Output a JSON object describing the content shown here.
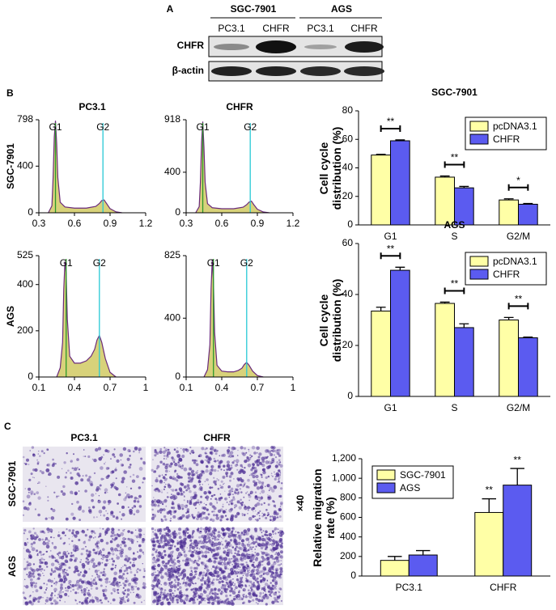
{
  "panel_labels": [
    "A",
    "B",
    "C"
  ],
  "blot": {
    "groups": [
      "SGC-7901",
      "AGS"
    ],
    "lanes": [
      "PC3.1",
      "CHFR",
      "PC3.1",
      "CHFR"
    ],
    "rows": [
      "CHFR",
      "β-actin"
    ]
  },
  "chart_data": [
    {
      "type": "histogram",
      "title": "PC3.1",
      "row_label": "SGC-7901",
      "x": [
        0.38,
        0.41,
        0.42,
        0.43,
        0.44,
        0.45,
        0.46,
        0.48,
        0.52,
        0.6,
        0.7,
        0.78,
        0.81,
        0.83,
        0.85,
        0.87,
        0.9,
        0.95,
        1.0
      ],
      "values": [
        0,
        60,
        300,
        650,
        790,
        600,
        300,
        90,
        50,
        40,
        40,
        55,
        80,
        105,
        110,
        80,
        35,
        8,
        0
      ],
      "xlim": [
        0.3,
        1.2
      ],
      "xticks": [
        0.3,
        0.6,
        0.9,
        1.2
      ],
      "ylim": [
        0,
        798
      ],
      "yticks": [
        0,
        400,
        798
      ],
      "markers": [
        {
          "label": "G1",
          "x": 0.44
        },
        {
          "label": "G2",
          "x": 0.84
        }
      ]
    },
    {
      "type": "histogram",
      "title": "CHFR",
      "x": [
        0.38,
        0.41,
        0.42,
        0.43,
        0.44,
        0.45,
        0.46,
        0.48,
        0.52,
        0.6,
        0.7,
        0.78,
        0.81,
        0.83,
        0.85,
        0.87,
        0.9,
        0.95,
        1.0
      ],
      "values": [
        0,
        60,
        300,
        700,
        900,
        650,
        300,
        90,
        50,
        40,
        40,
        55,
        80,
        105,
        115,
        80,
        35,
        8,
        0
      ],
      "xlim": [
        0.3,
        1.2
      ],
      "xticks": [
        0.3,
        0.6,
        0.9,
        1.2
      ],
      "ylim": [
        0,
        918
      ],
      "yticks": [
        0,
        400,
        918
      ],
      "markers": [
        {
          "label": "G1",
          "x": 0.44
        },
        {
          "label": "G2",
          "x": 0.84
        }
      ]
    },
    {
      "type": "bar",
      "title": "SGC-7901",
      "y_label": "Cell cycle distribution (%)",
      "categories": [
        "G1",
        "S",
        "G2/M"
      ],
      "series": [
        {
          "name": "pcDNA3.1",
          "color": "#ffffa6",
          "values": [
            49,
            33.5,
            17.5
          ],
          "errors": [
            0.5,
            0.8,
            0.8
          ]
        },
        {
          "name": "CHFR",
          "color": "#5b5bf0",
          "values": [
            59,
            26,
            14.5
          ],
          "errors": [
            0.6,
            1,
            0.5
          ]
        }
      ],
      "significance": [
        "**",
        "**",
        "*"
      ],
      "ylim": [
        0,
        80
      ],
      "yticks": [
        0,
        20,
        40,
        60,
        80
      ],
      "legend": "top-right"
    },
    {
      "type": "histogram",
      "row_label": "AGS",
      "x": [
        0.25,
        0.28,
        0.3,
        0.31,
        0.32,
        0.33,
        0.34,
        0.36,
        0.4,
        0.45,
        0.5,
        0.54,
        0.57,
        0.59,
        0.61,
        0.63,
        0.66,
        0.7,
        0.75
      ],
      "values": [
        0,
        40,
        150,
        380,
        500,
        450,
        250,
        90,
        60,
        60,
        70,
        90,
        120,
        160,
        180,
        150,
        80,
        20,
        0
      ],
      "xlim": [
        0.1,
        1
      ],
      "xticks": [
        0.1,
        0.4,
        0.7,
        1
      ],
      "ylim": [
        0,
        525
      ],
      "yticks": [
        0,
        200,
        400,
        525
      ],
      "markers": [
        {
          "label": "G1",
          "x": 0.33
        },
        {
          "label": "G2",
          "x": 0.61
        }
      ]
    },
    {
      "type": "histogram",
      "x": [
        0.25,
        0.28,
        0.3,
        0.31,
        0.32,
        0.33,
        0.34,
        0.36,
        0.4,
        0.45,
        0.5,
        0.54,
        0.57,
        0.59,
        0.61,
        0.63,
        0.66,
        0.7,
        0.75
      ],
      "values": [
        0,
        50,
        220,
        600,
        800,
        650,
        300,
        80,
        40,
        35,
        35,
        45,
        60,
        85,
        100,
        80,
        40,
        10,
        0
      ],
      "xlim": [
        0.1,
        1
      ],
      "xticks": [
        0.1,
        0.4,
        0.7,
        1
      ],
      "ylim": [
        0,
        825
      ],
      "yticks": [
        0,
        400,
        825
      ],
      "markers": [
        {
          "label": "G1",
          "x": 0.33
        },
        {
          "label": "G2",
          "x": 0.61
        }
      ]
    },
    {
      "type": "bar",
      "title": "AGS",
      "y_label": "Cell cycle distribution (%)",
      "categories": [
        "G1",
        "S",
        "G2/M"
      ],
      "series": [
        {
          "name": "pcDNA3.1",
          "color": "#ffffa6",
          "values": [
            33.5,
            36.5,
            30
          ],
          "errors": [
            1.5,
            0.5,
            1
          ]
        },
        {
          "name": "CHFR",
          "color": "#5b5bf0",
          "values": [
            49.5,
            27,
            23
          ],
          "errors": [
            1.2,
            1.5,
            0.3
          ]
        }
      ],
      "significance": [
        "**",
        "**",
        "**"
      ],
      "ylim": [
        0,
        60
      ],
      "yticks": [
        0,
        20,
        40,
        60
      ],
      "legend": "top-right"
    },
    {
      "type": "bar",
      "y_label": "Relative migration rate (%)",
      "categories": [
        "PC3.1",
        "CHFR"
      ],
      "series": [
        {
          "name": "SGC-7901",
          "color": "#ffffa6",
          "values": [
            160,
            650
          ],
          "errors": [
            40,
            140
          ],
          "sig_labels": [
            null,
            "**"
          ]
        },
        {
          "name": "AGS",
          "color": "#5b5bf0",
          "values": [
            215,
            930
          ],
          "errors": [
            45,
            170
          ],
          "sig_labels": [
            null,
            "**"
          ]
        }
      ],
      "ylim": [
        0,
        1200
      ],
      "yticks": [
        0,
        200,
        400,
        600,
        800,
        {
          "value": 1000,
          "label": "1,000"
        },
        {
          "value": 1200,
          "label": "1,200"
        }
      ],
      "legend": "top-left"
    }
  ],
  "micrographs": {
    "columns": [
      "PC3.1",
      "CHFR"
    ],
    "rows": [
      "SGC-7901",
      "AGS"
    ],
    "magnification": "×40"
  }
}
